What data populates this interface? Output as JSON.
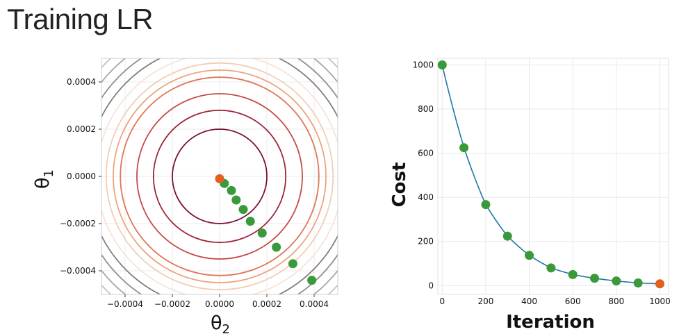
{
  "page": {
    "title": "Training LR"
  },
  "chart_data": [
    {
      "type": "contour",
      "xlabel": "θ2",
      "ylabel": "θ1",
      "xlim": [
        -0.0005,
        0.0005
      ],
      "ylim": [
        -0.0005,
        0.0005
      ],
      "xticks": [
        "−0.0004",
        "−0.0002",
        "0.0000",
        "0.0002",
        "0.0004"
      ],
      "xtick_values": [
        -0.0004,
        -0.0002,
        0,
        0.0002,
        0.0004
      ],
      "yticks": [
        "0.0004",
        "0.0002",
        "0.0000",
        "−0.0002",
        "−0.0004"
      ],
      "ytick_values": [
        0.0004,
        0.0002,
        0,
        -0.0002,
        -0.0004
      ],
      "grid": true,
      "contour_levels": [
        {
          "radius": 0.0002,
          "color": "#7a0e3a"
        },
        {
          "radius": 0.00028,
          "color": "#a0263b"
        },
        {
          "radius": 0.00035,
          "color": "#c44a45"
        },
        {
          "radius": 0.00042,
          "color": "#de7558"
        },
        {
          "radius": 0.00045,
          "color": "#eca47f"
        },
        {
          "radius": 0.00048,
          "color": "#f3cdb4"
        },
        {
          "radius": 0.00052,
          "color": "#f8e3d6"
        },
        {
          "radius": 0.00056,
          "color": "#7d7d7d"
        },
        {
          "radius": 0.0006,
          "color": "#8e8e8e"
        },
        {
          "radius": 0.00064,
          "color": "#a6a6a6"
        },
        {
          "radius": 0.00068,
          "color": "#c2c2c2"
        }
      ],
      "path_points": [
        {
          "x": 0.00039,
          "y": -0.00044
        },
        {
          "x": 0.00031,
          "y": -0.00037
        },
        {
          "x": 0.00024,
          "y": -0.0003
        },
        {
          "x": 0.00018,
          "y": -0.00024
        },
        {
          "x": 0.00013,
          "y": -0.00019
        },
        {
          "x": 0.0001,
          "y": -0.00014
        },
        {
          "x": 7e-05,
          "y": -0.0001
        },
        {
          "x": 5e-05,
          "y": -6e-05
        },
        {
          "x": 2e-05,
          "y": -3e-05
        }
      ],
      "final_point": {
        "x": 0.0,
        "y": -1e-05
      },
      "point_color": "#3a9a3a",
      "final_color": "#e0601c"
    },
    {
      "type": "line",
      "xlabel": "Iteration",
      "ylabel": "Cost",
      "xlim": [
        -20,
        1040
      ],
      "ylim": [
        -40,
        1030
      ],
      "xticks": [
        "0",
        "200",
        "400",
        "600",
        "800",
        "1000"
      ],
      "xtick_values": [
        0,
        200,
        400,
        600,
        800,
        1000
      ],
      "yticks": [
        "0",
        "200",
        "400",
        "600",
        "800",
        "1000"
      ],
      "ytick_values": [
        0,
        200,
        400,
        600,
        800,
        1000
      ],
      "grid": true,
      "line_color": "#1f78a8",
      "x": [
        0,
        100,
        200,
        300,
        400,
        500,
        600,
        700,
        800,
        900
      ],
      "values": [
        1000,
        625,
        367,
        224,
        137,
        80,
        50,
        33,
        21,
        12
      ],
      "final_point": {
        "x": 1000,
        "y": 8
      },
      "point_color": "#3a9a3a",
      "final_color": "#e0601c"
    }
  ]
}
